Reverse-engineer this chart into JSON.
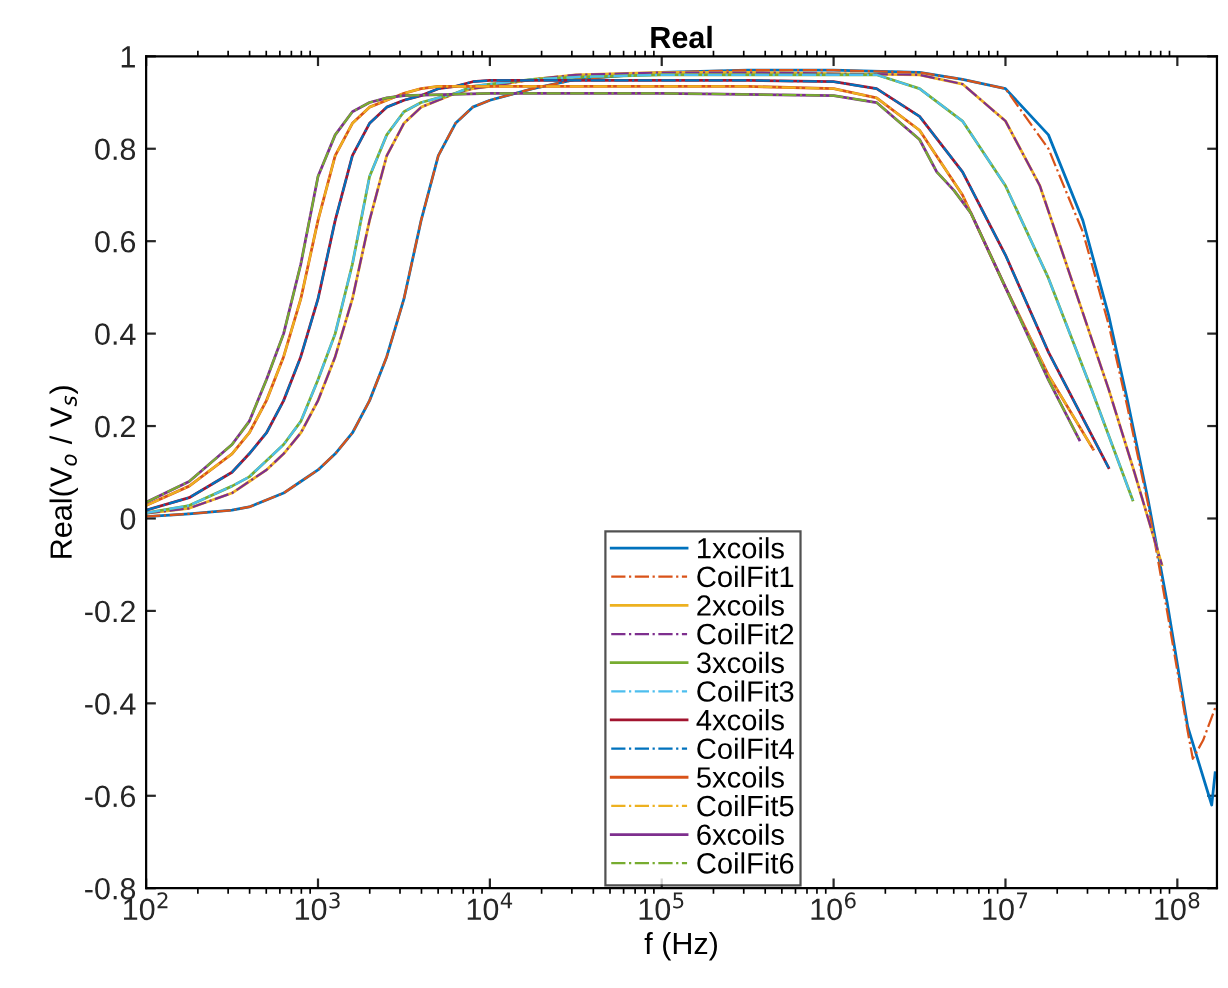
{
  "chart_data": {
    "type": "line",
    "title": "Real",
    "xlabel": "f (Hz)",
    "ylabel": "Real(V$_{o}$ / V$_{s}$)",
    "log": "x",
    "grid": false,
    "legend": "bottom",
    "xlim": [
      100,
      170000000
    ],
    "ylim": [
      -0.8,
      1
    ],
    "xticks": [
      {
        "value": 100,
        "label": "10$^{2}$"
      },
      {
        "value": 1000,
        "label": "10$^{3}$"
      },
      {
        "value": 10000,
        "label": "10$^{4}$"
      },
      {
        "value": 100000,
        "label": "10$^{5}$"
      },
      {
        "value": 1000000,
        "label": "10$^{6}$"
      },
      {
        "value": 10000000,
        "label": "10$^{7}$"
      },
      {
        "value": 100000000,
        "label": "10$^{8}$"
      }
    ],
    "yticks": [
      -0.8,
      -0.6,
      -0.4,
      -0.2,
      0,
      0.2,
      0.4,
      0.6,
      0.8,
      1
    ],
    "series": [
      {
        "name": "1xcoils",
        "color": "#0072bd",
        "line_style": "solid",
        "x": [
          100,
          178,
          316,
          398,
          501,
          631,
          794,
          1000,
          1259,
          1585,
          1995,
          2512,
          3162,
          3981,
          5012,
          6310,
          7943,
          10000,
          17783,
          31623,
          100000,
          316228,
          1000000,
          3162278,
          5623413,
          10000000,
          17782794,
          28183829,
          39810717,
          51286138,
          67608298,
          87096359,
          114815362,
          158489319,
          165958691
        ],
        "values": [
          0.004,
          0.01,
          0.018,
          0.025,
          0.04,
          0.055,
          0.08,
          0.105,
          0.14,
          0.185,
          0.255,
          0.35,
          0.475,
          0.645,
          0.785,
          0.855,
          0.89,
          0.905,
          0.93,
          0.95,
          0.965,
          0.97,
          0.97,
          0.965,
          0.95,
          0.93,
          0.83,
          0.645,
          0.44,
          0.255,
          0.04,
          -0.18,
          -0.45,
          -0.62,
          -0.55
        ]
      },
      {
        "name": "CoilFit1",
        "color": "#d95319",
        "line_style": "dashdot",
        "x": [
          100,
          178,
          316,
          398,
          501,
          631,
          794,
          1000,
          1259,
          1585,
          1995,
          2512,
          3162,
          3981,
          5012,
          6310,
          7943,
          10000,
          17783,
          31623,
          100000,
          316228,
          1000000,
          3162278,
          5623413,
          10000000,
          17782794,
          28183829,
          39810717,
          51286138,
          67608298,
          87096359,
          114815362,
          123026877,
          141253754,
          165958691
        ],
        "values": [
          0.004,
          0.01,
          0.018,
          0.025,
          0.04,
          0.055,
          0.08,
          0.105,
          0.14,
          0.185,
          0.255,
          0.35,
          0.475,
          0.645,
          0.785,
          0.855,
          0.89,
          0.905,
          0.93,
          0.95,
          0.965,
          0.97,
          0.97,
          0.965,
          0.95,
          0.93,
          0.8,
          0.62,
          0.42,
          0.24,
          0.03,
          -0.2,
          -0.46,
          -0.52,
          -0.48,
          -0.41
        ]
      },
      {
        "name": "2xcoils",
        "color": "#edb120",
        "line_style": "solid",
        "x": [
          100,
          178,
          316,
          398,
          501,
          631,
          794,
          1000,
          1259,
          1585,
          1995,
          2512,
          3162,
          3981,
          5012,
          6310,
          7943,
          10000,
          17783,
          31623,
          100000,
          316228,
          3162278,
          5623413,
          10000000,
          15848932,
          25118864,
          39810717,
          56234133,
          81283052
        ],
        "values": [
          0.011,
          0.022,
          0.055,
          0.08,
          0.105,
          0.14,
          0.185,
          0.255,
          0.35,
          0.475,
          0.645,
          0.785,
          0.855,
          0.89,
          0.905,
          0.92,
          0.93,
          0.935,
          0.95,
          0.96,
          0.965,
          0.965,
          0.96,
          0.94,
          0.86,
          0.72,
          0.5,
          0.28,
          0.1,
          -0.1
        ]
      },
      {
        "name": "CoilFit2",
        "color": "#7e2f8e",
        "line_style": "dashdot",
        "x": [
          100,
          178,
          316,
          398,
          501,
          631,
          794,
          1000,
          1259,
          1585,
          1995,
          2512,
          3162,
          3981,
          5012,
          6310,
          7943,
          10000,
          17783,
          31623,
          100000,
          316228,
          3162278,
          5623413,
          10000000,
          15848932,
          25118864,
          39810717,
          56234133,
          81283052
        ],
        "values": [
          0.011,
          0.022,
          0.055,
          0.08,
          0.105,
          0.14,
          0.185,
          0.255,
          0.35,
          0.475,
          0.645,
          0.785,
          0.855,
          0.89,
          0.905,
          0.92,
          0.93,
          0.935,
          0.95,
          0.96,
          0.965,
          0.965,
          0.96,
          0.94,
          0.86,
          0.72,
          0.5,
          0.28,
          0.1,
          -0.1
        ]
      },
      {
        "name": "3xcoils",
        "color": "#77ac30",
        "line_style": "solid",
        "x": [
          100,
          178,
          316,
          398,
          501,
          631,
          794,
          1000,
          1259,
          1585,
          1995,
          2512,
          3162,
          3981,
          5012,
          6310,
          7943,
          10000,
          17783,
          31623,
          100000,
          316228,
          1778279,
          3162278,
          5623413,
          10000000,
          17782794,
          31622777,
          54954087
        ],
        "values": [
          0.012,
          0.028,
          0.07,
          0.09,
          0.125,
          0.16,
          0.21,
          0.3,
          0.4,
          0.55,
          0.74,
          0.83,
          0.88,
          0.9,
          0.91,
          0.92,
          0.935,
          0.94,
          0.95,
          0.955,
          0.96,
          0.96,
          0.96,
          0.93,
          0.86,
          0.72,
          0.52,
          0.28,
          0.04
        ]
      },
      {
        "name": "CoilFit3",
        "color": "#4dbeee",
        "line_style": "dashdot",
        "x": [
          100,
          178,
          316,
          398,
          501,
          631,
          794,
          1000,
          1259,
          1585,
          1995,
          2512,
          3162,
          3981,
          5012,
          6310,
          7943,
          10000,
          17783,
          31623,
          100000,
          316228,
          1778279,
          3162278,
          5623413,
          10000000,
          17782794,
          31622777,
          54954087
        ],
        "values": [
          0.012,
          0.028,
          0.07,
          0.09,
          0.125,
          0.16,
          0.21,
          0.3,
          0.4,
          0.55,
          0.74,
          0.83,
          0.88,
          0.9,
          0.91,
          0.92,
          0.935,
          0.94,
          0.95,
          0.955,
          0.96,
          0.96,
          0.96,
          0.93,
          0.86,
          0.72,
          0.52,
          0.28,
          0.04
        ]
      },
      {
        "name": "4xcoils",
        "color": "#a2142f",
        "line_style": "solid",
        "x": [
          100,
          178,
          316,
          398,
          501,
          631,
          794,
          1000,
          1259,
          1585,
          1995,
          2512,
          3162,
          3981,
          5012,
          6310,
          7943,
          10000,
          17783,
          31623,
          100000,
          316228,
          1000000,
          1778279,
          3162278,
          5623413,
          10000000,
          17782794,
          39810717
        ],
        "values": [
          0.018,
          0.045,
          0.1,
          0.14,
          0.185,
          0.255,
          0.35,
          0.475,
          0.645,
          0.785,
          0.855,
          0.89,
          0.905,
          0.915,
          0.93,
          0.935,
          0.945,
          0.948,
          0.948,
          0.948,
          0.948,
          0.948,
          0.945,
          0.93,
          0.87,
          0.75,
          0.57,
          0.36,
          0.11
        ]
      },
      {
        "name": "CoilFit4",
        "color": "#0072bd",
        "line_style": "dashdot",
        "x": [
          100,
          178,
          316,
          398,
          501,
          631,
          794,
          1000,
          1259,
          1585,
          1995,
          2512,
          3162,
          3981,
          5012,
          6310,
          7943,
          10000,
          17783,
          31623,
          100000,
          316228,
          1000000,
          1778279,
          3162278,
          5623413,
          10000000,
          17782794,
          39810717
        ],
        "values": [
          0.018,
          0.045,
          0.1,
          0.14,
          0.185,
          0.255,
          0.35,
          0.475,
          0.645,
          0.785,
          0.855,
          0.89,
          0.905,
          0.915,
          0.93,
          0.935,
          0.945,
          0.948,
          0.948,
          0.948,
          0.948,
          0.948,
          0.945,
          0.93,
          0.87,
          0.75,
          0.57,
          0.36,
          0.11
        ]
      },
      {
        "name": "5xcoils",
        "color": "#d95319",
        "line_style": "solid",
        "x": [
          100,
          178,
          316,
          398,
          501,
          631,
          794,
          1000,
          1259,
          1585,
          1995,
          2512,
          3162,
          3981,
          5012,
          6310,
          7943,
          10000,
          17783,
          31623,
          100000,
          316228,
          1000000,
          1778279,
          3162278,
          5623413,
          10000000,
          17782794,
          32359366
        ],
        "values": [
          0.028,
          0.07,
          0.14,
          0.185,
          0.255,
          0.35,
          0.475,
          0.645,
          0.785,
          0.855,
          0.89,
          0.905,
          0.92,
          0.93,
          0.935,
          0.935,
          0.935,
          0.935,
          0.935,
          0.935,
          0.935,
          0.935,
          0.93,
          0.91,
          0.84,
          0.7,
          0.5,
          0.31,
          0.15
        ]
      },
      {
        "name": "CoilFit5",
        "color": "#edb120",
        "line_style": "dashdot",
        "x": [
          100,
          178,
          316,
          398,
          501,
          631,
          794,
          1000,
          1259,
          1585,
          1995,
          2512,
          3162,
          3981,
          5012,
          6310,
          7943,
          10000,
          17783,
          31623,
          100000,
          316228,
          1000000,
          1778279,
          3162278,
          5623413,
          10000000,
          17782794,
          32359366
        ],
        "values": [
          0.028,
          0.07,
          0.14,
          0.185,
          0.255,
          0.35,
          0.475,
          0.645,
          0.785,
          0.855,
          0.89,
          0.905,
          0.92,
          0.93,
          0.935,
          0.935,
          0.935,
          0.935,
          0.935,
          0.935,
          0.935,
          0.935,
          0.93,
          0.91,
          0.84,
          0.7,
          0.5,
          0.31,
          0.15
        ]
      },
      {
        "name": "6xcoils",
        "color": "#7e2f8e",
        "line_style": "solid",
        "x": [
          100,
          178,
          316,
          398,
          501,
          631,
          794,
          1000,
          1259,
          1585,
          1995,
          2512,
          3162,
          10000,
          100000,
          1000000,
          1778279,
          3162278,
          3981072,
          5011872,
          6309573,
          10000000,
          17782794,
          26915348
        ],
        "values": [
          0.035,
          0.08,
          0.16,
          0.21,
          0.3,
          0.4,
          0.55,
          0.74,
          0.83,
          0.88,
          0.9,
          0.91,
          0.915,
          0.92,
          0.92,
          0.915,
          0.9,
          0.82,
          0.75,
          0.71,
          0.66,
          0.5,
          0.3,
          0.17
        ]
      },
      {
        "name": "CoilFit6",
        "color": "#77ac30",
        "line_style": "dashdot",
        "x": [
          100,
          178,
          316,
          398,
          501,
          631,
          794,
          1000,
          1259,
          1585,
          1995,
          2512,
          3162,
          10000,
          100000,
          1000000,
          1778279,
          3162278,
          3981072,
          5011872,
          6309573,
          10000000,
          17782794,
          26915348
        ],
        "values": [
          0.035,
          0.08,
          0.16,
          0.21,
          0.3,
          0.4,
          0.55,
          0.74,
          0.83,
          0.88,
          0.9,
          0.91,
          0.915,
          0.92,
          0.92,
          0.915,
          0.9,
          0.82,
          0.75,
          0.71,
          0.66,
          0.5,
          0.3,
          0.17
        ]
      }
    ]
  }
}
